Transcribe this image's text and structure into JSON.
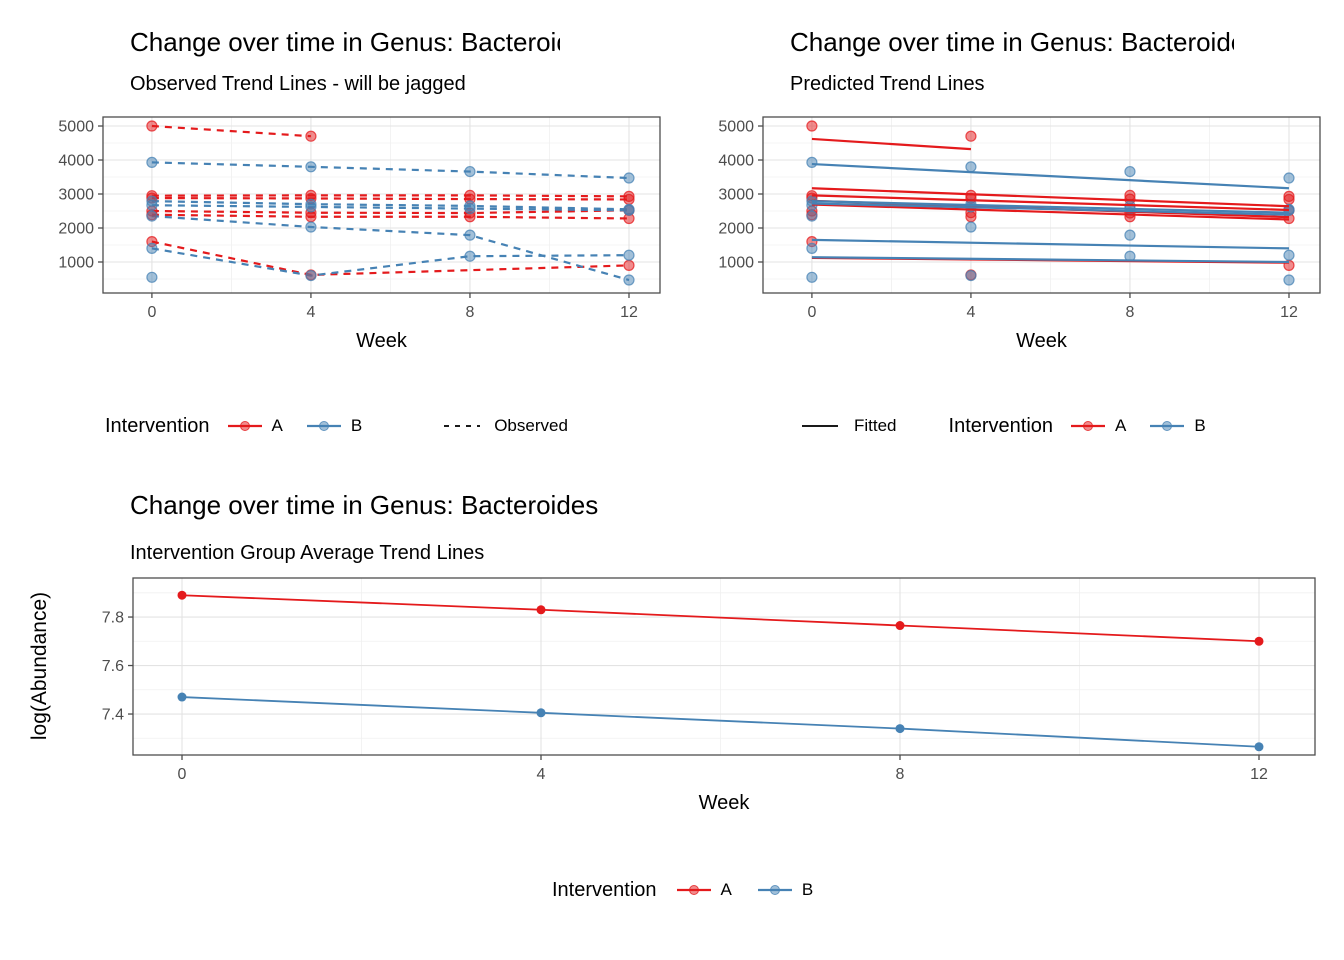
{
  "page": {
    "background": "#FFFFFF"
  },
  "colors": {
    "intervention_a": "#E41A1C",
    "intervention_b": "#4682B4",
    "grid_major": "#E3E3E3",
    "grid_minor": "#F0F0F0",
    "panel_border": "#4D4D4D",
    "tick_label": "#4D4D4D",
    "axis_title": "#000000",
    "key_line": "#1A1A1A"
  },
  "legends": {
    "intervention_title": "Intervention",
    "a_label": "A",
    "b_label": "B",
    "observed_label": "Observed",
    "fitted_label": "Fitted"
  },
  "chart_data": [
    {
      "id": "observed",
      "type": "line",
      "title": "Change over time in Genus: Bacteroides",
      "subtitle": "Observed Trend Lines - will be jagged",
      "xlabel": "Week",
      "ylabel": "",
      "x_ticks": [
        0,
        4,
        8,
        12
      ],
      "y_ticks": [
        1000,
        2000,
        3000,
        4000,
        5000
      ],
      "xlim": [
        -1.23,
        12.78
      ],
      "ylim": [
        88,
        5265
      ],
      "grid": true,
      "legend_position": "bottom",
      "line_style": "dashed",
      "line_width": 2.2,
      "marker_r": 5,
      "marker_alpha": true,
      "draw_order": "lines-first",
      "series": [
        {
          "group": "A",
          "id": "A1",
          "weeks": [
            0,
            4
          ],
          "values": [
            5000,
            4700
          ]
        },
        {
          "group": "A",
          "id": "A2",
          "weeks": [
            0,
            4,
            8,
            12
          ],
          "values": [
            2950,
            2960,
            2960,
            2930
          ]
        },
        {
          "group": "A",
          "id": "A3",
          "weeks": [
            0,
            4,
            8,
            12
          ],
          "values": [
            2880,
            2870,
            2850,
            2840
          ]
        },
        {
          "group": "A",
          "id": "A4",
          "weeks": [
            0,
            4,
            8,
            12
          ],
          "values": [
            2500,
            2450,
            2440,
            2520
          ]
        },
        {
          "group": "A",
          "id": "A5",
          "weeks": [
            0,
            4,
            8,
            12
          ],
          "values": [
            2390,
            2330,
            2330,
            2280
          ]
        },
        {
          "group": "A",
          "id": "A6",
          "weeks": [
            0,
            4,
            12
          ],
          "values": [
            1600,
            620,
            900
          ]
        },
        {
          "group": "B",
          "id": "B1",
          "weeks": [
            0,
            4,
            8,
            12
          ],
          "values": [
            3930,
            3800,
            3660,
            3470
          ]
        },
        {
          "group": "B",
          "id": "B2",
          "weeks": [
            0,
            4,
            8,
            12
          ],
          "values": [
            2790,
            2700,
            2650,
            2550
          ]
        },
        {
          "group": "B",
          "id": "B3",
          "weeks": [
            0,
            4,
            8,
            12
          ],
          "values": [
            2670,
            2620,
            2570,
            2520
          ]
        },
        {
          "group": "B",
          "id": "B4",
          "weeks": [
            0,
            4,
            8,
            12
          ],
          "values": [
            2350,
            2030,
            1790,
            470
          ]
        },
        {
          "group": "B",
          "id": "B5",
          "weeks": [
            0,
            4,
            8,
            12
          ],
          "values": [
            1400,
            600,
            1170,
            1200
          ]
        },
        {
          "group": "B",
          "id": "B6",
          "weeks": [
            0
          ],
          "values": [
            550
          ]
        }
      ]
    },
    {
      "id": "predicted",
      "type": "line",
      "title": "Change over time in Genus: Bacteroides",
      "subtitle": "Predicted Trend Lines",
      "xlabel": "Week",
      "ylabel": "",
      "x_ticks": [
        0,
        4,
        8,
        12
      ],
      "y_ticks": [
        1000,
        2000,
        3000,
        4000,
        5000
      ],
      "xlim": [
        -1.23,
        12.78
      ],
      "ylim": [
        88,
        5265
      ],
      "grid": true,
      "legend_position": "bottom",
      "line_style": "solid",
      "line_width": 2.2,
      "marker_r": 5,
      "marker_alpha": true,
      "draw_order": "markers-first",
      "markers_source": 0,
      "series": [
        {
          "group": "A",
          "id": "A1",
          "weeks": [
            0,
            4
          ],
          "values": [
            4620,
            4320
          ]
        },
        {
          "group": "A",
          "id": "A2",
          "weeks": [
            0,
            12
          ],
          "values": [
            3170,
            2640
          ]
        },
        {
          "group": "A",
          "id": "A3",
          "weeks": [
            0,
            12
          ],
          "values": [
            2960,
            2530
          ]
        },
        {
          "group": "A",
          "id": "A4",
          "weeks": [
            0,
            12
          ],
          "values": [
            2800,
            2320
          ]
        },
        {
          "group": "A",
          "id": "A5",
          "weeks": [
            0,
            12
          ],
          "values": [
            2690,
            2250
          ]
        },
        {
          "group": "A",
          "id": "A6",
          "weeks": [
            0,
            12
          ],
          "values": [
            1120,
            980
          ]
        },
        {
          "group": "B",
          "id": "B1",
          "weeks": [
            0,
            12
          ],
          "values": [
            3880,
            3170
          ]
        },
        {
          "group": "B",
          "id": "B2",
          "weeks": [
            0,
            12
          ],
          "values": [
            2790,
            2450
          ]
        },
        {
          "group": "B",
          "id": "B3",
          "weeks": [
            0,
            12
          ],
          "values": [
            2720,
            2390
          ]
        },
        {
          "group": "B",
          "id": "B4",
          "weeks": [
            0,
            12
          ],
          "values": [
            1650,
            1400
          ]
        },
        {
          "group": "B",
          "id": "B5",
          "weeks": [
            0,
            12
          ],
          "values": [
            1140,
            1000
          ]
        }
      ]
    },
    {
      "id": "average",
      "type": "line",
      "title": "Change over time in Genus: Bacteroides",
      "subtitle": "Intervention Group Average Trend Lines",
      "xlabel": "Week",
      "ylabel": "log(Abundance)",
      "x_ticks": [
        0,
        4,
        8,
        12
      ],
      "y_ticks": [
        7.4,
        7.6,
        7.8
      ],
      "xlim": [
        -0.546,
        12.624
      ],
      "ylim": [
        7.231,
        7.961
      ],
      "grid": true,
      "legend_position": "bottom",
      "line_style": "solid",
      "line_width": 1.8,
      "marker_r": 4.5,
      "marker_alpha": false,
      "draw_order": "lines-first",
      "series": [
        {
          "group": "A",
          "id": "A-mean",
          "weeks": [
            0,
            4,
            8,
            12
          ],
          "values": [
            7.89,
            7.83,
            7.765,
            7.7
          ]
        },
        {
          "group": "B",
          "id": "B-mean",
          "weeks": [
            0,
            4,
            8,
            12
          ],
          "values": [
            7.47,
            7.405,
            7.34,
            7.265
          ]
        }
      ]
    }
  ]
}
